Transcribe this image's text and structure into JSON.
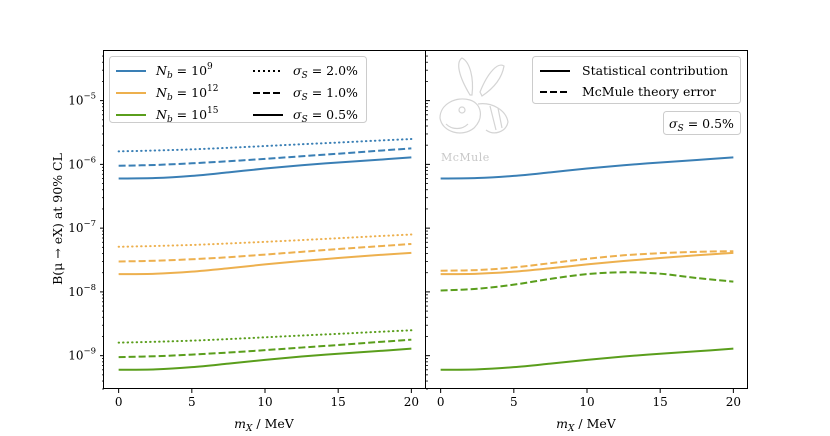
{
  "chart_data": {
    "type": "line",
    "shared": {
      "ylabel": "B(μ → eX) at 90% CL",
      "xlabel": "m_X / MeV",
      "xlabel_var": "m",
      "xlabel_sub": "X",
      "xlabel_unit": " / MeV",
      "xlim": [
        -1,
        21
      ],
      "ylim": [
        3e-10,
        6e-05
      ],
      "yscale": "log",
      "x_ticks": [
        0,
        5,
        10,
        15,
        20
      ],
      "y_ticks": [
        {
          "value": 1e-09,
          "label": "10",
          "exp": "−9"
        },
        {
          "value": 1e-08,
          "label": "10",
          "exp": "−8"
        },
        {
          "value": 1e-07,
          "label": "10",
          "exp": "−7"
        },
        {
          "value": 1e-06,
          "label": "10",
          "exp": "−6"
        },
        {
          "value": 1e-05,
          "label": "10",
          "exp": "−5"
        }
      ],
      "colors": {
        "blue": "#3a7fb5",
        "orange": "#edb04e",
        "green": "#5a9e1c"
      }
    },
    "panels": [
      {
        "name": "left",
        "legend_colors": [
          {
            "color": "blue",
            "label": "N",
            "sub": "b",
            "rhs": " = 10",
            "exp": "9"
          },
          {
            "color": "orange",
            "label": "N",
            "sub": "b",
            "rhs": " = 10",
            "exp": "12"
          },
          {
            "color": "green",
            "label": "N",
            "sub": "b",
            "rhs": " = 10",
            "exp": "15"
          }
        ],
        "legend_styles": [
          {
            "dash": "dotted",
            "label": "σ",
            "sub": "S",
            "rhs": " = 2.0%"
          },
          {
            "dash": "dashed",
            "label": "σ",
            "sub": "S",
            "rhs": " = 1.0%"
          },
          {
            "dash": "solid",
            "label": "σ",
            "sub": "S",
            "rhs": " = 0.5%"
          }
        ],
        "x": [
          0,
          2.5,
          5,
          7.5,
          10,
          12.5,
          15,
          17.5,
          20
        ],
        "series": [
          {
            "name": "N_b=10^9, σ_S=2.0%",
            "color": "blue",
            "dash": "dotted",
            "values": [
              1.6e-06,
              1.65e-06,
              1.72e-06,
              1.82e-06,
              1.94e-06,
              2.07e-06,
              2.2e-06,
              2.35e-06,
              2.5e-06
            ]
          },
          {
            "name": "N_b=10^9, σ_S=1.0%",
            "color": "blue",
            "dash": "dashed",
            "values": [
              9.5e-07,
              9.8e-07,
              1.04e-06,
              1.12e-06,
              1.22e-06,
              1.34e-06,
              1.47e-06,
              1.62e-06,
              1.78e-06
            ]
          },
          {
            "name": "N_b=10^9, σ_S=0.5%",
            "color": "blue",
            "dash": "solid",
            "values": [
              6e-07,
              6.1e-07,
              6.6e-07,
              7.5e-07,
              8.6e-07,
              9.7e-07,
              1.07e-06,
              1.17e-06,
              1.29e-06
            ]
          },
          {
            "name": "N_b=10^12, σ_S=2.0%",
            "color": "orange",
            "dash": "dotted",
            "values": [
              5.1e-08,
              5.25e-08,
              5.45e-08,
              5.75e-08,
              6.1e-08,
              6.5e-08,
              6.95e-08,
              7.45e-08,
              7.95e-08
            ]
          },
          {
            "name": "N_b=10^12, σ_S=1.0%",
            "color": "orange",
            "dash": "dashed",
            "values": [
              3e-08,
              3.08e-08,
              3.25e-08,
              3.5e-08,
              3.85e-08,
              4.25e-08,
              4.7e-08,
              5.15e-08,
              5.65e-08
            ]
          },
          {
            "name": "N_b=10^12, σ_S=0.5%",
            "color": "orange",
            "dash": "solid",
            "values": [
              1.9e-08,
              1.93e-08,
              2.08e-08,
              2.35e-08,
              2.7e-08,
              3.05e-08,
              3.4e-08,
              3.75e-08,
              4.1e-08
            ]
          },
          {
            "name": "N_b=10^15, σ_S=2.0%",
            "color": "green",
            "dash": "dotted",
            "values": [
              1.6e-09,
              1.65e-09,
              1.72e-09,
              1.82e-09,
              1.94e-09,
              2.07e-09,
              2.2e-09,
              2.35e-09,
              2.5e-09
            ]
          },
          {
            "name": "N_b=10^15, σ_S=1.0%",
            "color": "green",
            "dash": "dashed",
            "values": [
              9.5e-10,
              9.8e-10,
              1.04e-09,
              1.12e-09,
              1.22e-09,
              1.34e-09,
              1.47e-09,
              1.62e-09,
              1.78e-09
            ]
          },
          {
            "name": "N_b=10^15, σ_S=0.5%",
            "color": "green",
            "dash": "solid",
            "values": [
              6e-10,
              6.1e-10,
              6.6e-10,
              7.5e-10,
              8.6e-10,
              9.7e-10,
              1.07e-09,
              1.17e-09,
              1.29e-09
            ]
          }
        ]
      },
      {
        "name": "right",
        "legend_styles": [
          {
            "dash": "solid",
            "text": "Statistical contribution"
          },
          {
            "dash": "dashed",
            "text": "McMule theory error"
          }
        ],
        "badge": {
          "label": "σ",
          "sub": "S",
          "rhs": " = 0.5%"
        },
        "watermark": "McMule",
        "x": [
          0,
          2.5,
          5,
          7.5,
          10,
          12.5,
          15,
          17.5,
          20
        ],
        "series": [
          {
            "name": "N_b=10^9 statistical",
            "color": "blue",
            "dash": "solid",
            "values": [
              6e-07,
              6.1e-07,
              6.6e-07,
              7.5e-07,
              8.6e-07,
              9.7e-07,
              1.07e-06,
              1.17e-06,
              1.29e-06
            ]
          },
          {
            "name": "N_b=10^12 theory",
            "color": "orange",
            "dash": "dashed",
            "values": [
              2.15e-08,
              2.2e-08,
              2.42e-08,
              2.82e-08,
              3.3e-08,
              3.75e-08,
              4.05e-08,
              4.25e-08,
              4.35e-08
            ]
          },
          {
            "name": "N_b=10^12 statistical",
            "color": "orange",
            "dash": "solid",
            "values": [
              1.9e-08,
              1.93e-08,
              2.08e-08,
              2.35e-08,
              2.7e-08,
              3.05e-08,
              3.4e-08,
              3.75e-08,
              4.1e-08
            ]
          },
          {
            "name": "N_b=10^15 theory",
            "color": "green",
            "dash": "dashed",
            "values": [
              1.05e-08,
              1.12e-08,
              1.3e-08,
              1.6e-08,
              1.9e-08,
              2.03e-08,
              1.93e-08,
              1.65e-08,
              1.45e-08
            ]
          },
          {
            "name": "N_b=10^15 statistical",
            "color": "green",
            "dash": "solid",
            "values": [
              6e-10,
              6.1e-10,
              6.6e-10,
              7.5e-10,
              8.6e-10,
              9.7e-10,
              1.07e-09,
              1.17e-09,
              1.29e-09
            ]
          }
        ]
      }
    ]
  }
}
